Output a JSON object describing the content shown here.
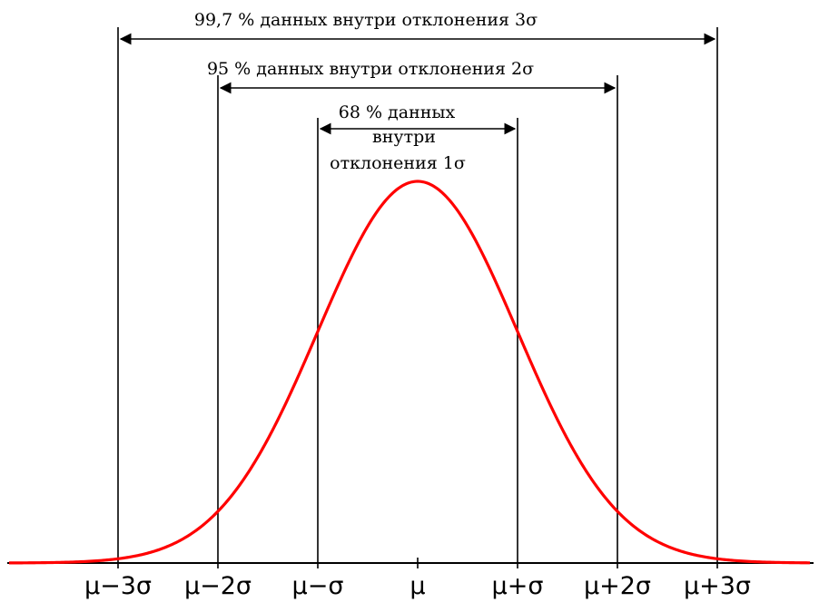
{
  "bands": {
    "three_sigma": {
      "label": "99,7 % данных внутри отклонения 3σ"
    },
    "two_sigma": {
      "label": "95 % данных внутри отклонения 2σ"
    },
    "one_sigma": {
      "lines": [
        "68 % данных",
        "внутри",
        "отклонения 1σ"
      ]
    }
  },
  "ticks": [
    "μ−3σ",
    "μ−2σ",
    "μ−σ",
    "μ",
    "μ+σ",
    "μ+2σ",
    "μ+3σ"
  ],
  "colors": {
    "curve": "#ff0000",
    "lines": "#000000",
    "background": "#ffffff"
  }
}
